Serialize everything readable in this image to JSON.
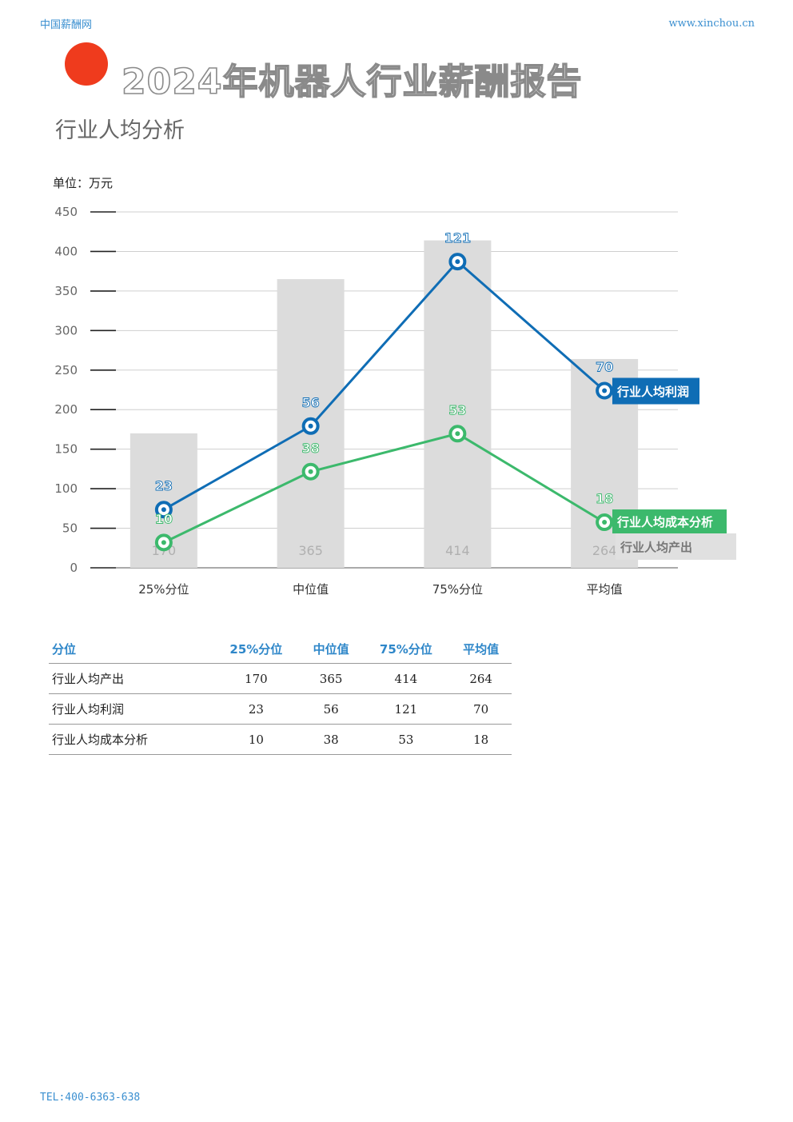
{
  "header": {
    "left": "中国薪酬网",
    "right": "www.xinchou.cn"
  },
  "title": "2024年机器人行业薪酬报告",
  "subtitle": "行业人均分析",
  "unit_label": "单位：万元",
  "footer": "TEL:400-6363-638",
  "colors": {
    "bar": "#dcdcdc",
    "profit": "#0f6db5",
    "cost": "#3cb96c",
    "accent": "#ef3b1d"
  },
  "chart_data": {
    "type": "bar",
    "categories": [
      "25%分位",
      "中位值",
      "75%分位",
      "平均值"
    ],
    "ylim": [
      0,
      450
    ],
    "yticks": [
      "0",
      "50",
      "100",
      "150",
      "200",
      "250",
      "300",
      "350",
      "400",
      "450"
    ],
    "series": [
      {
        "name": "行业人均产出",
        "type": "bar",
        "values": [
          170,
          365,
          414,
          264
        ]
      },
      {
        "name": "行业人均利润",
        "type": "line",
        "values": [
          23,
          56,
          121,
          70
        ]
      },
      {
        "name": "行业人均成本分析",
        "type": "line",
        "values": [
          10,
          38,
          53,
          18
        ]
      }
    ],
    "xlabel": "",
    "ylabel": "",
    "grid": true
  },
  "table": {
    "headers": [
      "分位",
      "25%分位",
      "中位值",
      "75%分位",
      "平均值"
    ],
    "rows": [
      [
        "行业人均产出",
        "170",
        "365",
        "414",
        "264"
      ],
      [
        "行业人均利润",
        "23",
        "56",
        "121",
        "70"
      ],
      [
        "行业人均成本分析",
        "10",
        "38",
        "53",
        "18"
      ]
    ]
  }
}
